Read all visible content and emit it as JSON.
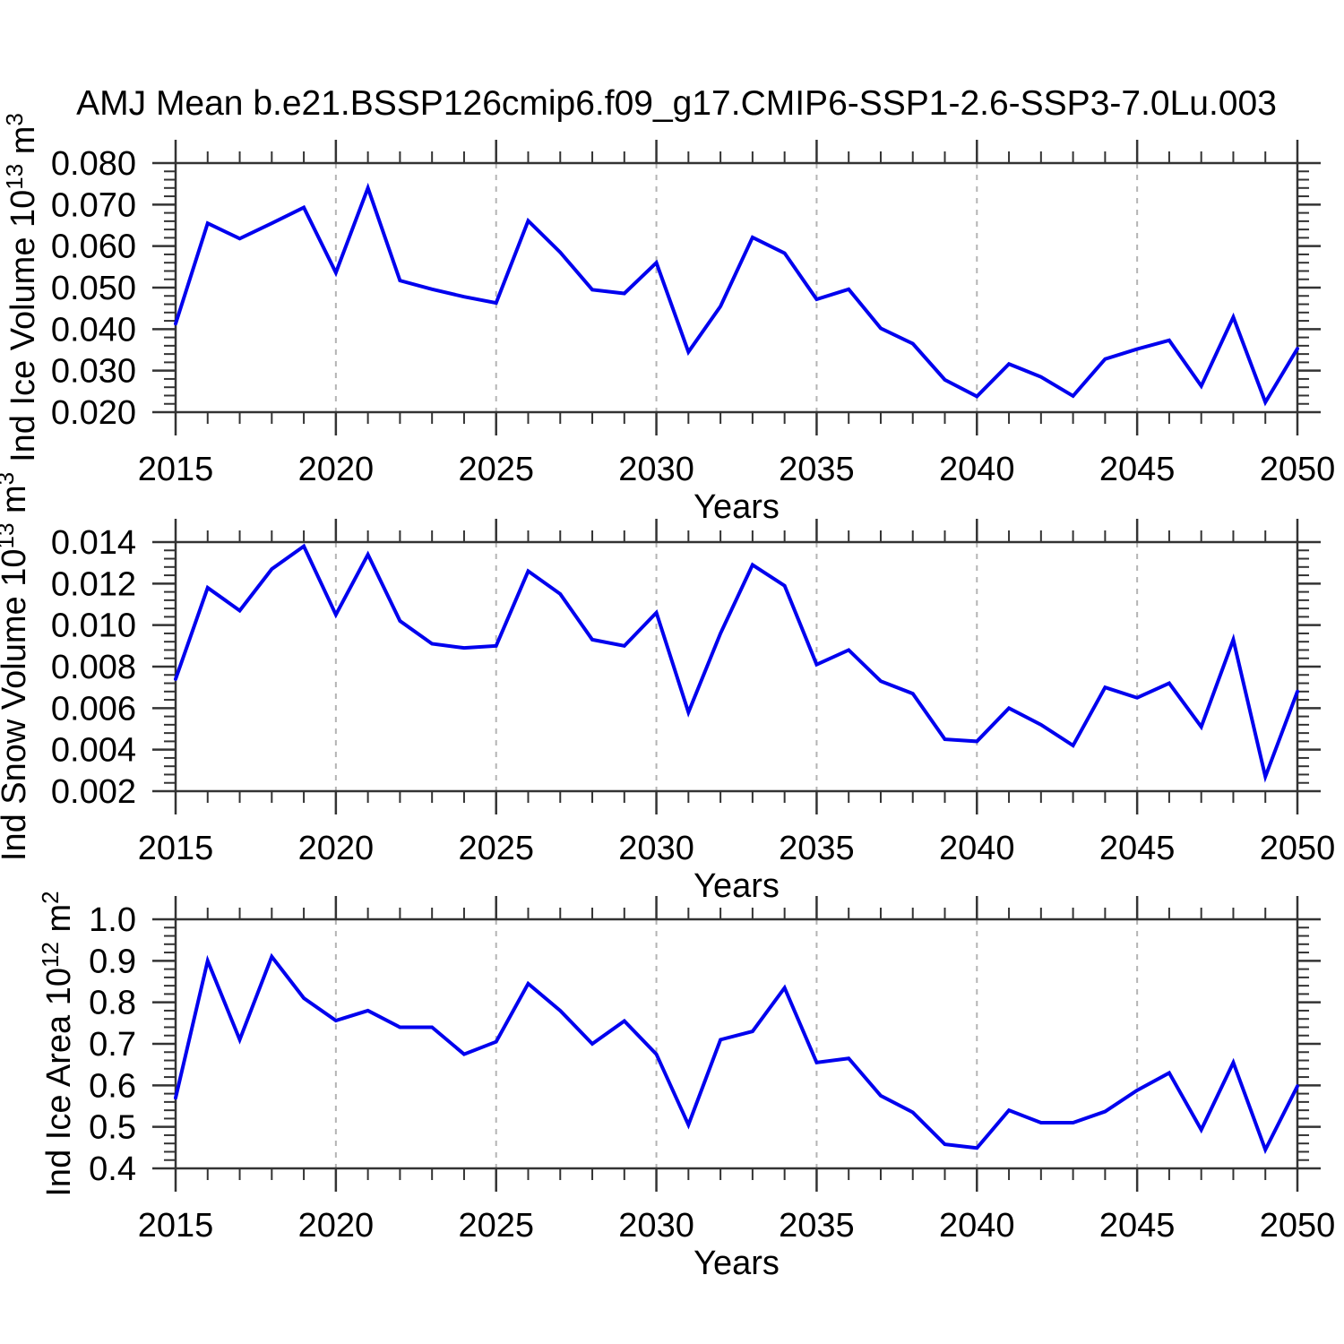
{
  "title": "AMJ Mean b.e21.BSSP126cmip6.f09_g17.CMIP6-SSP1-2.6-SSP3-7.0Lu.003",
  "line_color": "#0000ee",
  "frame_color": "#333333",
  "grid_color": "#b4b4b4",
  "chart_data": [
    {
      "type": "line",
      "name": "ice-volume",
      "ylabel": "Ind Ice Volume 10^13 m^3",
      "ylabel_parts": [
        {
          "t": "Ind Ice Volume 10"
        },
        {
          "t": "13",
          "sup": true
        },
        {
          "t": " m"
        },
        {
          "t": "3",
          "sup": true
        }
      ],
      "xlabel": "Years",
      "xlim": [
        2015,
        2050
      ],
      "ylim": [
        0.02,
        0.08
      ],
      "grid": true,
      "grid_years": [
        2020,
        2025,
        2030,
        2035,
        2040,
        2045
      ],
      "x_minor_step": 1,
      "y_minor_step": 0.002,
      "x_major_ticks": {
        "values": [
          2015,
          2020,
          2025,
          2030,
          2035,
          2040,
          2045,
          2050
        ],
        "labels": [
          "2015",
          "2020",
          "2025",
          "2030",
          "2035",
          "2040",
          "2045",
          "2050"
        ]
      },
      "y_major_ticks": {
        "values": [
          0.02,
          0.03,
          0.04,
          0.05,
          0.06,
          0.07,
          0.08
        ],
        "labels": [
          "0.020",
          "0.030",
          "0.040",
          "0.050",
          "0.060",
          "0.070",
          "0.080"
        ]
      },
      "x": [
        2015,
        2016,
        2017,
        2018,
        2019,
        2020,
        2021,
        2022,
        2023,
        2024,
        2025,
        2026,
        2027,
        2028,
        2029,
        2030,
        2031,
        2032,
        2033,
        2034,
        2035,
        2036,
        2037,
        2038,
        2039,
        2040,
        2041,
        2042,
        2043,
        2044,
        2045,
        2046,
        2047,
        2048,
        2049,
        2050
      ],
      "values": [
        0.0413,
        0.0655,
        0.0618,
        0.0655,
        0.0693,
        0.0536,
        0.074,
        0.0517,
        0.0496,
        0.0478,
        0.0463,
        0.0661,
        0.0585,
        0.0495,
        0.0486,
        0.056,
        0.0345,
        0.0455,
        0.0621,
        0.0583,
        0.0472,
        0.0496,
        0.0402,
        0.0365,
        0.0278,
        0.0238,
        0.0316,
        0.0285,
        0.0239,
        0.0328,
        0.0352,
        0.0373,
        0.0263,
        0.0429,
        0.0224,
        0.0353
      ]
    },
    {
      "type": "line",
      "name": "snow-volume",
      "ylabel": "Ind Snow Volume 10^13 m^3",
      "ylabel_parts": [
        {
          "t": "Ind Snow Volume 10"
        },
        {
          "t": "13",
          "sup": true
        },
        {
          "t": " m"
        },
        {
          "t": "3",
          "sup": true
        }
      ],
      "xlabel": "Years",
      "xlim": [
        2015,
        2050
      ],
      "ylim": [
        0.002,
        0.014
      ],
      "grid": true,
      "grid_years": [
        2020,
        2025,
        2030,
        2035,
        2040,
        2045
      ],
      "x_minor_step": 1,
      "y_minor_step": 0.0004,
      "x_major_ticks": {
        "values": [
          2015,
          2020,
          2025,
          2030,
          2035,
          2040,
          2045,
          2050
        ],
        "labels": [
          "2015",
          "2020",
          "2025",
          "2030",
          "2035",
          "2040",
          "2045",
          "2050"
        ]
      },
      "y_major_ticks": {
        "values": [
          0.002,
          0.004,
          0.006,
          0.008,
          0.01,
          0.012,
          0.014
        ],
        "labels": [
          "0.002",
          "0.004",
          "0.006",
          "0.008",
          "0.010",
          "0.012",
          "0.014"
        ]
      },
      "x": [
        2015,
        2016,
        2017,
        2018,
        2019,
        2020,
        2021,
        2022,
        2023,
        2024,
        2025,
        2026,
        2027,
        2028,
        2029,
        2030,
        2031,
        2032,
        2033,
        2034,
        2035,
        2036,
        2037,
        2038,
        2039,
        2040,
        2041,
        2042,
        2043,
        2044,
        2045,
        2046,
        2047,
        2048,
        2049,
        2050
      ],
      "values": [
        0.0074,
        0.0118,
        0.0107,
        0.0127,
        0.0138,
        0.0105,
        0.0134,
        0.0102,
        0.0091,
        0.0089,
        0.009,
        0.0126,
        0.0115,
        0.0093,
        0.009,
        0.0106,
        0.0058,
        0.0096,
        0.0129,
        0.0119,
        0.0081,
        0.0088,
        0.0073,
        0.0067,
        0.0045,
        0.0044,
        0.006,
        0.0052,
        0.0042,
        0.007,
        0.0065,
        0.0072,
        0.0051,
        0.0093,
        0.0027,
        0.0068
      ]
    },
    {
      "type": "line",
      "name": "ice-area",
      "ylabel": "Ind Ice Area 10^12 m^2",
      "ylabel_parts": [
        {
          "t": "Ind Ice Area 10"
        },
        {
          "t": "12",
          "sup": true
        },
        {
          "t": " m"
        },
        {
          "t": "2",
          "sup": true
        }
      ],
      "xlabel": "Years",
      "xlim": [
        2015,
        2050
      ],
      "ylim": [
        0.4,
        1.0
      ],
      "grid": true,
      "grid_years": [
        2020,
        2025,
        2030,
        2035,
        2040,
        2045
      ],
      "x_minor_step": 1,
      "y_minor_step": 0.02,
      "x_major_ticks": {
        "values": [
          2015,
          2020,
          2025,
          2030,
          2035,
          2040,
          2045,
          2050
        ],
        "labels": [
          "2015",
          "2020",
          "2025",
          "2030",
          "2035",
          "2040",
          "2045",
          "2050"
        ]
      },
      "y_major_ticks": {
        "values": [
          0.4,
          0.5,
          0.6,
          0.7,
          0.8,
          0.9,
          1.0
        ],
        "labels": [
          "0.4",
          "0.5",
          "0.6",
          "0.7",
          "0.8",
          "0.9",
          "1.0"
        ]
      },
      "x": [
        2015,
        2016,
        2017,
        2018,
        2019,
        2020,
        2021,
        2022,
        2023,
        2024,
        2025,
        2026,
        2027,
        2028,
        2029,
        2030,
        2031,
        2032,
        2033,
        2034,
        2035,
        2036,
        2037,
        2038,
        2039,
        2040,
        2041,
        2042,
        2043,
        2044,
        2045,
        2046,
        2047,
        2048,
        2049,
        2050
      ],
      "values": [
        0.57,
        0.9,
        0.71,
        0.91,
        0.81,
        0.756,
        0.78,
        0.74,
        0.74,
        0.675,
        0.705,
        0.845,
        0.78,
        0.7,
        0.755,
        0.675,
        0.505,
        0.71,
        0.73,
        0.835,
        0.655,
        0.665,
        0.575,
        0.535,
        0.458,
        0.449,
        0.54,
        0.51,
        0.51,
        0.537,
        0.588,
        0.63,
        0.493,
        0.655,
        0.445,
        0.598
      ]
    }
  ]
}
